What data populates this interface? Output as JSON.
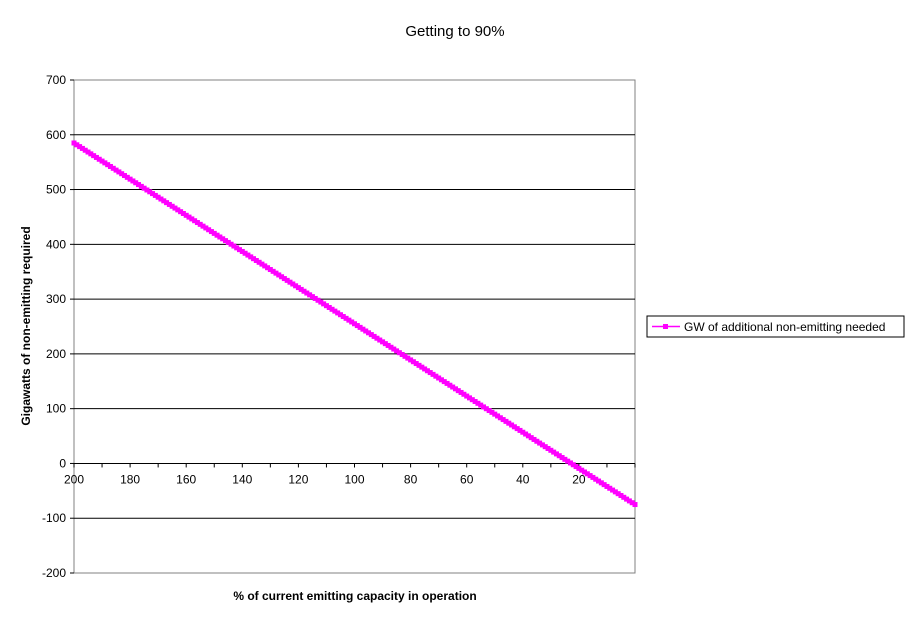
{
  "chart_data": {
    "type": "line",
    "title": "Getting to 90%",
    "xlabel": "% of current emitting capacity in operation",
    "ylabel": "Gigawatts of non-emitting required",
    "xlim": [
      200,
      0
    ],
    "ylim": [
      -200,
      700
    ],
    "x_ticks": [
      "200",
      "180",
      "160",
      "140",
      "120",
      "100",
      "80",
      "60",
      "40",
      "20"
    ],
    "y_ticks": [
      "700",
      "600",
      "500",
      "400",
      "300",
      "200",
      "100",
      "0",
      "-100",
      "-200"
    ],
    "x_tick_values": [
      200,
      180,
      160,
      140,
      120,
      100,
      80,
      60,
      40,
      20
    ],
    "y_tick_values": [
      700,
      600,
      500,
      400,
      300,
      200,
      100,
      0,
      -100,
      -200
    ],
    "grid": "horizontal",
    "legend_position": "right",
    "series": [
      {
        "name": "GW of additional non-emitting needed",
        "color": "#ff00ff",
        "marker": "square",
        "x": [
          200,
          180,
          160,
          140,
          120,
          100,
          80,
          60,
          40,
          20,
          0
        ],
        "y": [
          585,
          519,
          453,
          387,
          321,
          255,
          189,
          123,
          57,
          -9,
          -75
        ]
      }
    ]
  }
}
